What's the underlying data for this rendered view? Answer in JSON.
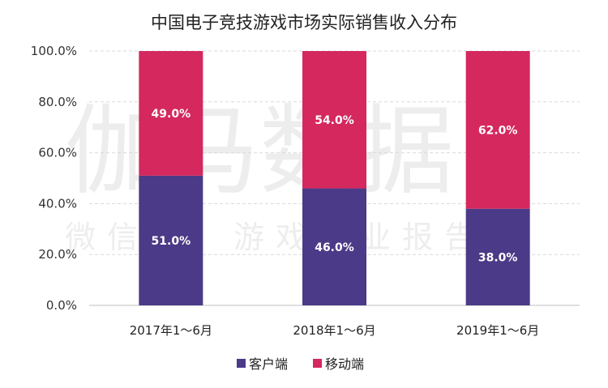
{
  "chart_data": {
    "type": "bar",
    "stacked": true,
    "title": "中国电子竞技游戏市场实际销售收入分布",
    "categories": [
      "2017年1～6月",
      "2018年1～6月",
      "2019年1～6月"
    ],
    "series": [
      {
        "name": "客户端",
        "values": [
          51.0,
          46.0,
          38.0
        ],
        "labels": [
          "51.0%",
          "46.0%",
          "38.0%"
        ],
        "color": "#4b3a87"
      },
      {
        "name": "移动端",
        "values": [
          49.0,
          54.0,
          62.0
        ],
        "labels": [
          "49.0%",
          "54.0%",
          "62.0%"
        ],
        "color": "#d4285f"
      }
    ],
    "ylim": [
      0,
      100
    ],
    "yticks": [
      "0.0%",
      "20.0%",
      "40.0%",
      "60.0%",
      "80.0%",
      "100.0%"
    ],
    "grid": true,
    "legend_position": "bottom"
  },
  "watermark": {
    "main": "伽马数据",
    "sub": "微信号：游戏产业报告"
  }
}
